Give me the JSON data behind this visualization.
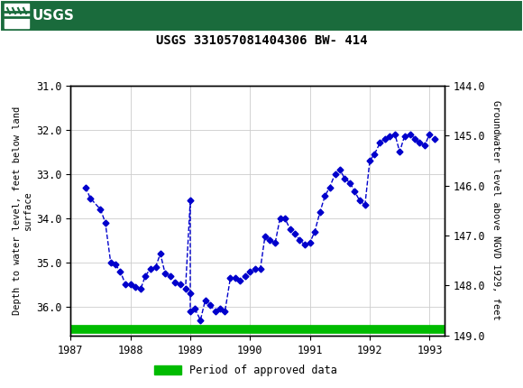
{
  "title": "USGS 331057081404306 BW- 414",
  "ylabel_left": "Depth to water level, feet below land\nsurface",
  "ylabel_right": "Groundwater level above NGVD 1929, feet",
  "xlim": [
    1987.0,
    1993.25
  ],
  "ylim_left": [
    31.0,
    36.65
  ],
  "ylim_right": [
    144.0,
    149.0
  ],
  "yticks_left": [
    31.0,
    32.0,
    33.0,
    34.0,
    35.0,
    36.0
  ],
  "yticks_right": [
    144.0,
    145.0,
    146.0,
    147.0,
    148.0,
    149.0
  ],
  "xticks": [
    1987,
    1988,
    1989,
    1990,
    1991,
    1992,
    1993
  ],
  "line_color": "#0000CC",
  "marker": "D",
  "markersize": 3.5,
  "linestyle": "--",
  "linewidth": 1.0,
  "background_color": "#ffffff",
  "grid_color": "#cccccc",
  "header_color": "#1a6b3c",
  "legend_label": "Period of approved data",
  "legend_color": "#00bb00",
  "bar_bottom_y": 36.5,
  "data_x": [
    1987.25,
    1987.33,
    1987.5,
    1987.58,
    1987.67,
    1987.75,
    1987.83,
    1987.92,
    1988.0,
    1988.08,
    1988.17,
    1988.25,
    1988.33,
    1988.42,
    1988.5,
    1988.58,
    1988.67,
    1988.75,
    1988.83,
    1988.92,
    1989.0,
    1989.0,
    1989.0,
    1989.08,
    1989.17,
    1989.25,
    1989.33,
    1989.42,
    1989.5,
    1989.58,
    1989.67,
    1989.75,
    1989.83,
    1989.92,
    1990.0,
    1990.08,
    1990.17,
    1990.25,
    1990.33,
    1990.42,
    1990.5,
    1990.58,
    1990.67,
    1990.75,
    1990.83,
    1990.92,
    1991.0,
    1991.08,
    1991.17,
    1991.25,
    1991.33,
    1991.42,
    1991.5,
    1991.58,
    1991.67,
    1991.75,
    1991.83,
    1991.92,
    1992.0,
    1992.08,
    1992.17,
    1992.25,
    1992.33,
    1992.42,
    1992.5,
    1992.58,
    1992.67,
    1992.75,
    1992.83,
    1992.92,
    1993.0,
    1993.08
  ],
  "data_y": [
    33.3,
    33.55,
    33.8,
    34.1,
    35.0,
    35.05,
    35.2,
    35.5,
    35.5,
    35.55,
    35.6,
    35.3,
    35.15,
    35.1,
    34.8,
    35.25,
    35.3,
    35.45,
    35.5,
    35.6,
    33.6,
    35.7,
    36.1,
    36.05,
    36.3,
    35.85,
    35.95,
    36.1,
    36.05,
    36.1,
    35.35,
    35.35,
    35.4,
    35.3,
    35.2,
    35.15,
    35.15,
    34.4,
    34.5,
    34.55,
    34.0,
    34.0,
    34.25,
    34.35,
    34.5,
    34.6,
    34.55,
    34.3,
    33.85,
    33.5,
    33.3,
    33.0,
    32.9,
    33.1,
    33.2,
    33.4,
    33.6,
    33.7,
    32.7,
    32.55,
    32.3,
    32.2,
    32.15,
    32.1,
    32.5,
    32.15,
    32.1,
    32.2,
    32.3,
    32.35,
    32.1,
    32.2
  ]
}
